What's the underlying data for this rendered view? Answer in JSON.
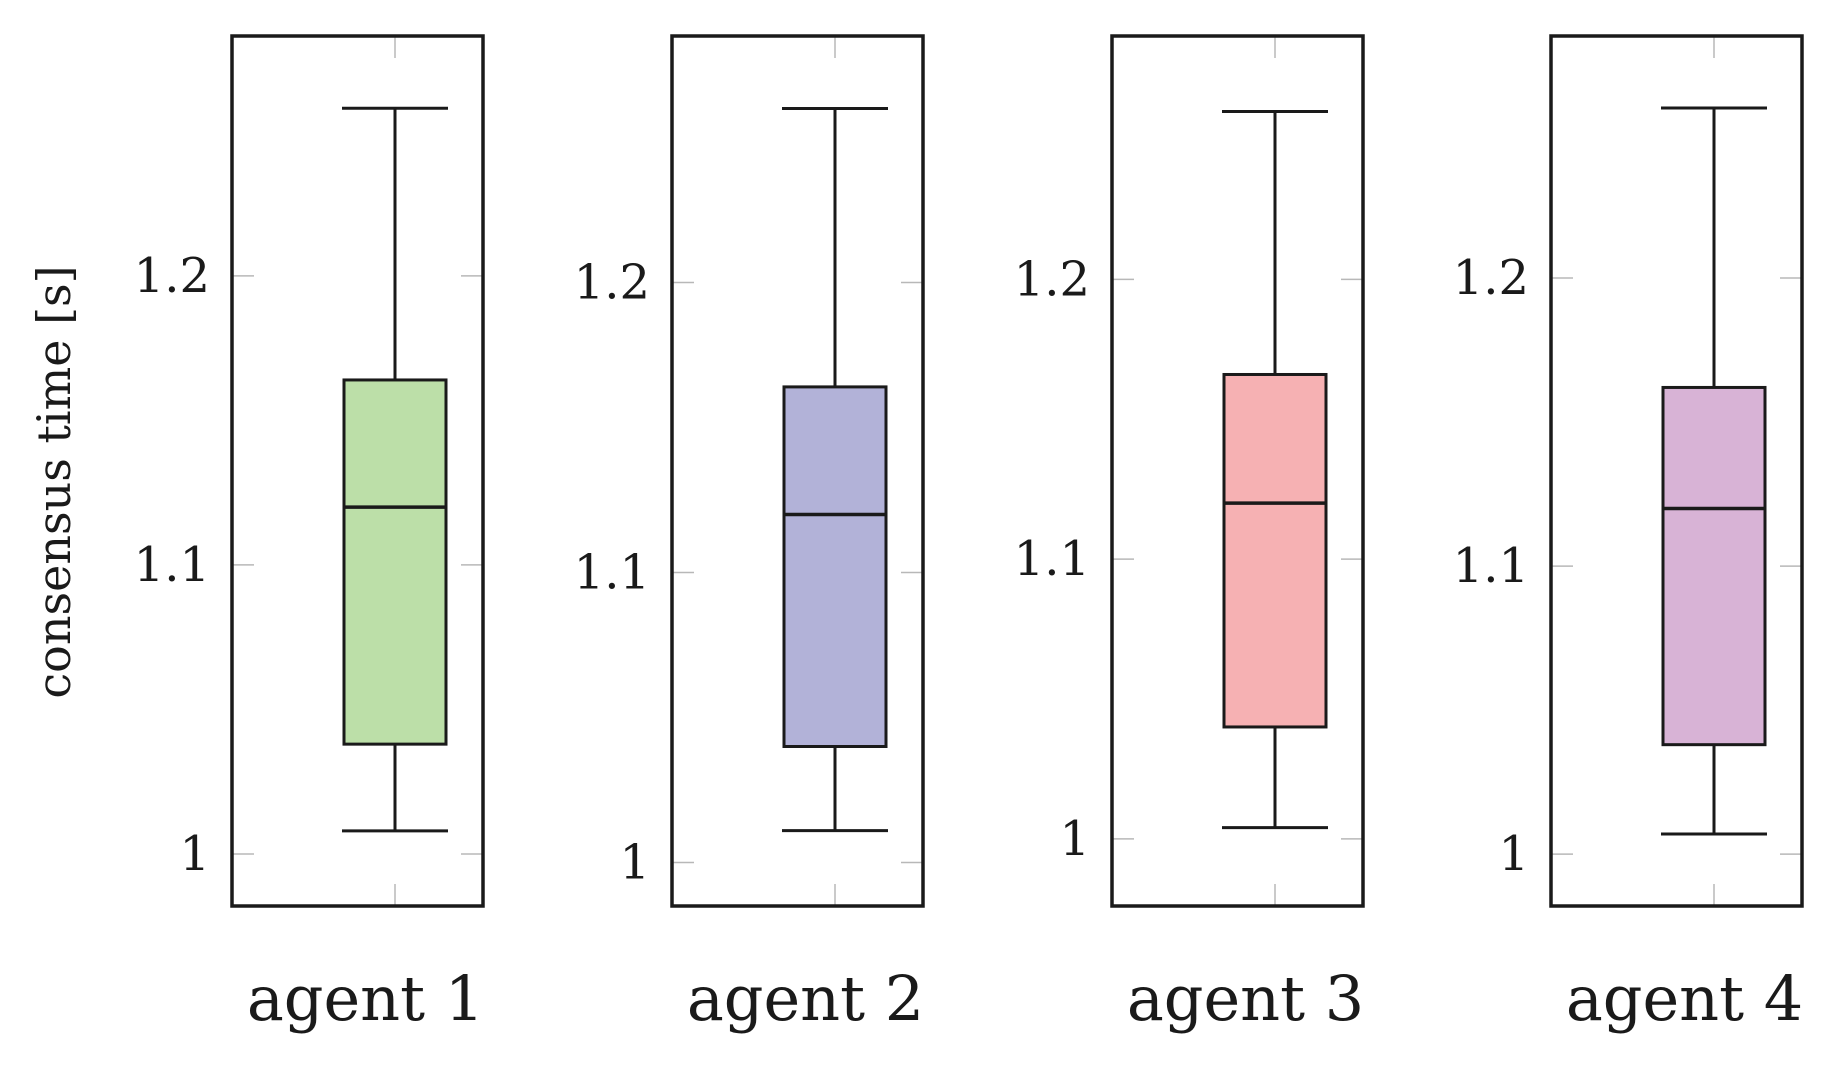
{
  "chart_data": {
    "type": "box",
    "ylabel": "consensus time [s]",
    "panels": [
      {
        "label": "agent 1",
        "fill": "#bcdfa8",
        "ylim": [
          0.982,
          1.283
        ],
        "yticks": [
          1,
          1.1,
          1.2
        ],
        "ytick_labels": [
          "1",
          "1.1",
          "1.2"
        ],
        "whisker_low": 1.008,
        "q1": 1.038,
        "median": 1.12,
        "q3": 1.164,
        "whisker_high": 1.258
      },
      {
        "label": "agent 2",
        "fill": "#b2b2d8",
        "ylim": [
          0.985,
          1.285
        ],
        "yticks": [
          1,
          1.1,
          1.2
        ],
        "ytick_labels": [
          "1",
          "1.1",
          "1.2"
        ],
        "whisker_low": 1.011,
        "q1": 1.04,
        "median": 1.12,
        "q3": 1.164,
        "whisker_high": 1.26
      },
      {
        "label": "agent 3",
        "fill": "#f6b1b3",
        "ylim": [
          0.976,
          1.287
        ],
        "yticks": [
          1,
          1.1,
          1.2
        ],
        "ytick_labels": [
          "1",
          "1.1",
          "1.2"
        ],
        "whisker_low": 1.004,
        "q1": 1.04,
        "median": 1.12,
        "q3": 1.166,
        "whisker_high": 1.26
      },
      {
        "label": "agent 4",
        "fill": "#d8b3d6",
        "ylim": [
          0.982,
          1.284
        ],
        "yticks": [
          1,
          1.1,
          1.2
        ],
        "ytick_labels": [
          "1",
          "1.1",
          "1.2"
        ],
        "whisker_low": 1.007,
        "q1": 1.038,
        "median": 1.12,
        "q3": 1.162,
        "whisker_high": 1.259
      }
    ]
  }
}
